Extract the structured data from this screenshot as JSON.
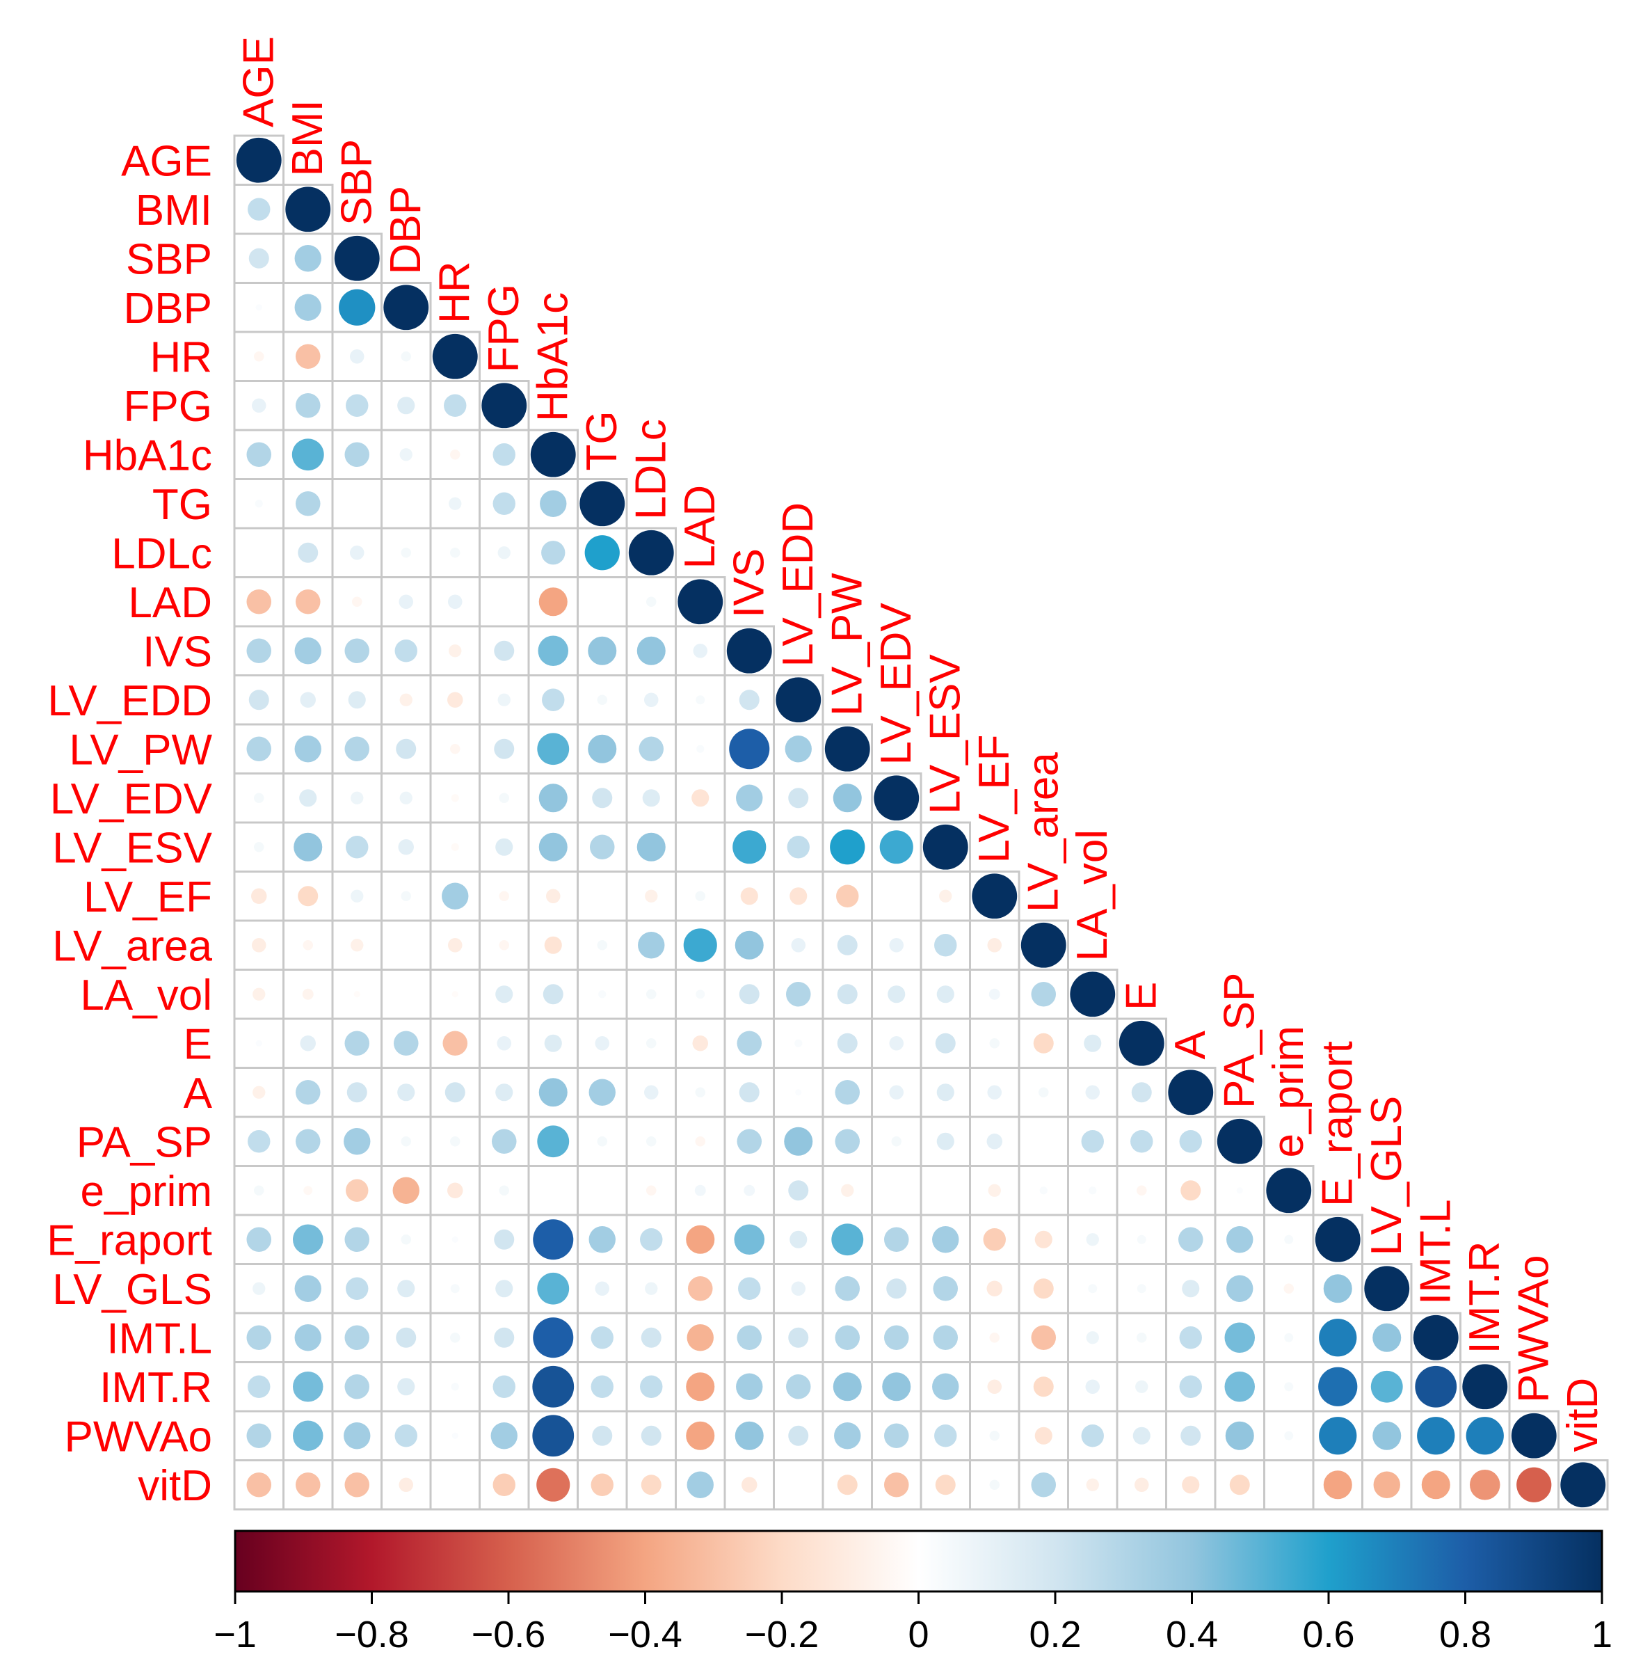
{
  "chart_data": {
    "type": "heatmap",
    "variables": [
      "AGE",
      "BMI",
      "SBP",
      "DBP",
      "HR",
      "FPG",
      "HbA1c",
      "TG",
      "LDLc",
      "LAD",
      "IVS",
      "LV_EDD",
      "LV_PW",
      "LV_EDV",
      "LV_ESV",
      "LV_EF",
      "LV_area",
      "LA_vol",
      "E",
      "A",
      "PA_SP",
      "e_prim",
      "E_raport",
      "LV_GLS",
      "IMT.L",
      "IMT.R",
      "PWVAo",
      "vitD"
    ],
    "matrix_lower": [
      [
        1
      ],
      [
        0.25,
        1
      ],
      [
        0.2,
        0.35,
        1
      ],
      [
        0.02,
        0.35,
        0.65,
        1
      ],
      [
        -0.05,
        -0.3,
        0.1,
        0.05,
        1
      ],
      [
        0.1,
        0.3,
        0.25,
        0.15,
        0.25,
        1
      ],
      [
        0.3,
        0.5,
        0.3,
        0.08,
        -0.05,
        0.25,
        1
      ],
      [
        0.03,
        0.3,
        0,
        0,
        0.08,
        0.25,
        0.35,
        1
      ],
      [
        0,
        0.2,
        0.1,
        0.05,
        0.05,
        0.08,
        0.28,
        0.6,
        1
      ],
      [
        -0.3,
        -0.3,
        -0.05,
        0.1,
        0.1,
        0,
        -0.4,
        0,
        0.05,
        1
      ],
      [
        0.3,
        0.35,
        0.3,
        0.25,
        -0.08,
        0.2,
        0.45,
        0.4,
        0.4,
        0.1,
        1
      ],
      [
        0.2,
        0.12,
        0.15,
        -0.08,
        -0.12,
        0.08,
        0.25,
        0.05,
        0.1,
        0.04,
        0.2,
        1
      ],
      [
        0.3,
        0.35,
        0.3,
        0.2,
        -0.05,
        0.2,
        0.5,
        0.4,
        0.3,
        0.03,
        0.8,
        0.35,
        1
      ],
      [
        0.05,
        0.15,
        0.08,
        0.08,
        -0.03,
        0.05,
        0.4,
        0.2,
        0.15,
        -0.15,
        0.35,
        0.2,
        0.4,
        1
      ],
      [
        0.05,
        0.4,
        0.25,
        0.12,
        -0.03,
        0.15,
        0.4,
        0.3,
        0.4,
        0,
        0.55,
        0.25,
        0.6,
        0.55,
        1
      ],
      [
        -0.12,
        -0.2,
        0.08,
        0.05,
        0.35,
        -0.05,
        -0.1,
        0,
        -0.08,
        0.05,
        -0.15,
        -0.15,
        -0.25,
        0,
        -0.08,
        1
      ],
      [
        -0.1,
        -0.05,
        -0.08,
        0,
        -0.1,
        -0.05,
        -0.15,
        0.05,
        0.35,
        0.55,
        0.4,
        0.1,
        0.2,
        0.1,
        0.25,
        -0.1,
        1
      ],
      [
        -0.08,
        -0.06,
        -0.02,
        0,
        -0.02,
        0.15,
        0.2,
        0.03,
        0.05,
        0.04,
        0.2,
        0.3,
        0.2,
        0.15,
        0.15,
        0.06,
        0.3,
        1
      ],
      [
        0.02,
        0.12,
        0.3,
        0.3,
        -0.3,
        0.1,
        0.15,
        0.1,
        0.05,
        -0.12,
        0.3,
        0.03,
        0.2,
        0.1,
        0.2,
        0.05,
        -0.2,
        0.15,
        1
      ],
      [
        -0.08,
        0.3,
        0.2,
        0.15,
        0.2,
        0.15,
        0.4,
        0.35,
        0.1,
        0.05,
        0.2,
        0.02,
        0.3,
        0.1,
        0.15,
        0.1,
        0.05,
        0.1,
        0.2,
        1
      ],
      [
        0.25,
        0.3,
        0.35,
        0.05,
        0.05,
        0.3,
        0.5,
        0.05,
        0.05,
        -0.05,
        0.3,
        0.4,
        0.3,
        0.05,
        0.15,
        0.12,
        0,
        0.25,
        0.25,
        0.25,
        1
      ],
      [
        0.05,
        -0.04,
        -0.25,
        -0.35,
        -0.12,
        0.05,
        0,
        0,
        -0.05,
        0.06,
        0.06,
        0.2,
        -0.08,
        0,
        0,
        -0.08,
        0.03,
        0.03,
        -0.05,
        -0.2,
        0.02,
        1
      ],
      [
        0.3,
        0.45,
        0.3,
        0.05,
        0.02,
        0.2,
        0.8,
        0.35,
        0.25,
        -0.4,
        0.45,
        0.15,
        0.5,
        0.3,
        0.35,
        -0.25,
        -0.15,
        0.08,
        0.04,
        0.3,
        0.35,
        0.04,
        1
      ],
      [
        0.08,
        0.35,
        0.25,
        0.15,
        0.04,
        0.15,
        0.5,
        0.1,
        0.08,
        -0.3,
        0.25,
        0.1,
        0.3,
        0.2,
        0.3,
        -0.12,
        -0.2,
        0.04,
        0.04,
        0.15,
        0.35,
        -0.05,
        0.4,
        1
      ],
      [
        0.3,
        0.35,
        0.3,
        0.2,
        0.05,
        0.2,
        0.8,
        0.25,
        0.2,
        -0.35,
        0.3,
        0.2,
        0.3,
        0.3,
        0.3,
        -0.05,
        -0.3,
        0.08,
        0.05,
        0.25,
        0.45,
        0.04,
        0.7,
        0.4,
        1
      ],
      [
        0.25,
        0.45,
        0.3,
        0.15,
        0.03,
        0.25,
        0.85,
        0.25,
        0.25,
        -0.4,
        0.35,
        0.3,
        0.4,
        0.4,
        0.35,
        -0.1,
        -0.2,
        0.1,
        0.08,
        0.25,
        0.45,
        0.04,
        0.75,
        0.5,
        0.85,
        1
      ],
      [
        0.3,
        0.45,
        0.35,
        0.25,
        0.02,
        0.35,
        0.85,
        0.2,
        0.2,
        -0.4,
        0.4,
        0.2,
        0.35,
        0.3,
        0.25,
        0.05,
        -0.15,
        0.25,
        0.15,
        0.2,
        0.4,
        0.04,
        0.7,
        0.4,
        0.7,
        0.7,
        1
      ],
      [
        -0.3,
        -0.3,
        -0.3,
        -0.1,
        0,
        -0.25,
        -0.55,
        -0.25,
        -0.2,
        0.35,
        -0.12,
        0,
        -0.2,
        -0.3,
        -0.2,
        0.05,
        0.3,
        -0.08,
        -0.1,
        -0.15,
        -0.2,
        0,
        -0.4,
        -0.35,
        -0.4,
        -0.45,
        -0.6,
        1
      ]
    ],
    "legend": {
      "range": [
        -1,
        1
      ],
      "ticks": [
        "−1",
        "−0.8",
        "−0.6",
        "−0.4",
        "−0.2",
        "0",
        "0.2",
        "0.4",
        "0.6",
        "0.8",
        "1"
      ],
      "tick_values": [
        -1,
        -0.8,
        -0.6,
        -0.4,
        -0.2,
        0,
        0.2,
        0.4,
        0.6,
        0.8,
        1
      ],
      "placement": "bottom",
      "colors": [
        "#67001f",
        "#b2182b",
        "#d6604d",
        "#f4a582",
        "#fddbc7",
        "#ffffff",
        "#d1e5f0",
        "#92c5de",
        "#1fa0cc",
        "#1d5ea8",
        "#053061"
      ]
    },
    "label_color": "#ff0000",
    "grid": true
  }
}
